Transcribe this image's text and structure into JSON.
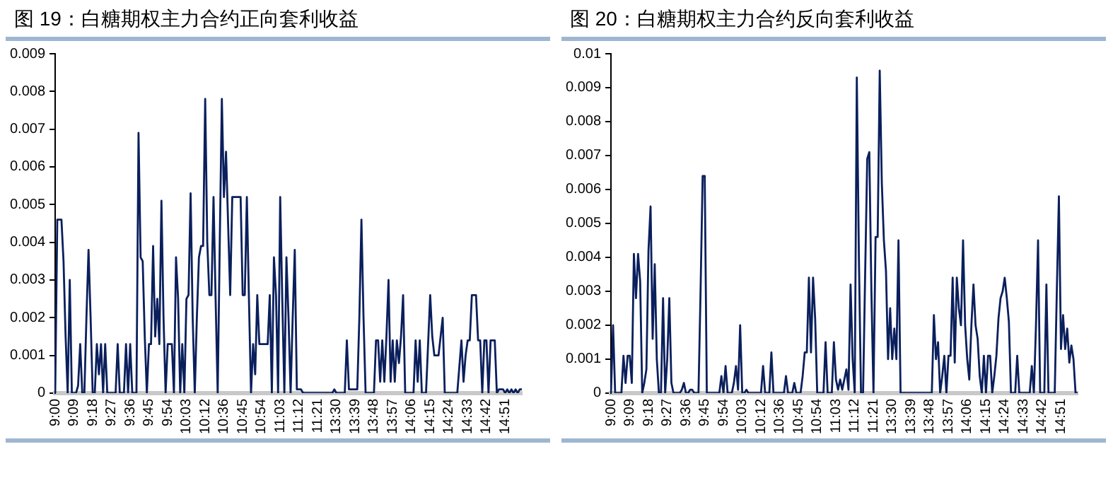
{
  "chart_data": [
    {
      "type": "line",
      "title": "图 19：白糖期权主力合约正向套利收益",
      "categories": [
        "9:00",
        null,
        null,
        null,
        null,
        null,
        null,
        null,
        null,
        "9:09",
        null,
        null,
        null,
        null,
        null,
        null,
        null,
        null,
        "9:18",
        null,
        null,
        null,
        null,
        null,
        null,
        null,
        null,
        "9:27",
        null,
        null,
        null,
        null,
        null,
        null,
        null,
        null,
        "9:36",
        null,
        null,
        null,
        null,
        null,
        null,
        null,
        null,
        "9:45",
        null,
        null,
        null,
        null,
        null,
        null,
        null,
        null,
        "9:54",
        null,
        null,
        null,
        null,
        null,
        null,
        null,
        null,
        "10:03",
        null,
        null,
        null,
        null,
        null,
        null,
        null,
        null,
        "10:12",
        null,
        null,
        null,
        null,
        null,
        null,
        null,
        null,
        "10:36",
        null,
        null,
        null,
        null,
        null,
        null,
        null,
        null,
        "10:45",
        null,
        null,
        null,
        null,
        null,
        null,
        null,
        null,
        "10:54",
        null,
        null,
        null,
        null,
        null,
        null,
        null,
        null,
        "11:03",
        null,
        null,
        null,
        null,
        null,
        null,
        null,
        null,
        "11:12",
        null,
        null,
        null,
        null,
        null,
        null,
        null,
        null,
        "11:21",
        null,
        null,
        null,
        null,
        null,
        null,
        null,
        null,
        "13:30",
        null,
        null,
        null,
        null,
        null,
        null,
        null,
        null,
        "13:39",
        null,
        null,
        null,
        null,
        null,
        null,
        null,
        null,
        "13:48",
        null,
        null,
        null,
        null,
        null,
        null,
        null,
        null,
        "13:57",
        null,
        null,
        null,
        null,
        null,
        null,
        null,
        null,
        "14:06",
        null,
        null,
        null,
        null,
        null,
        null,
        null,
        null,
        "14:15",
        null,
        null,
        null,
        null,
        null,
        null,
        null,
        null,
        "14:24",
        null,
        null,
        null,
        null,
        null,
        null,
        null,
        null,
        "14:33",
        null,
        null,
        null,
        null,
        null,
        null,
        null,
        null,
        "14:42",
        null,
        null,
        null,
        null,
        null,
        null,
        null,
        null,
        "14:51",
        null,
        null,
        null,
        null,
        null,
        null,
        null,
        null
      ],
      "series": [
        {
          "color": "#0a1f5c",
          "values": [
            0,
            0.0046,
            0.0046,
            0.0046,
            0.0035,
            0.0015,
            0,
            0.003,
            0,
            0,
            0,
            0.0002,
            0.0013,
            0,
            0,
            0.002,
            0.0038,
            0.002,
            0,
            0,
            0.0013,
            0.0005,
            0.0013,
            0,
            0.0013,
            0,
            0,
            0,
            0,
            0,
            0.0013,
            0,
            0,
            0,
            0.0013,
            0,
            0.0013,
            0,
            0,
            0,
            0.0069,
            0.0036,
            0.0035,
            0.0015,
            0,
            0.0013,
            0.0013,
            0.0039,
            0.0015,
            0.0025,
            0.0013,
            0.0051,
            0.002,
            0,
            0.0013,
            0.0013,
            0.0013,
            0,
            0.0036,
            0.0025,
            0,
            0.0013,
            0,
            0.0025,
            0.0026,
            0.0053,
            0.002,
            0,
            0.002,
            0.0036,
            0.0039,
            0.0039,
            0.0078,
            0.004,
            0.0026,
            0.0026,
            0.0052,
            0.0025,
            0,
            0.004,
            0.0078,
            0.0052,
            0.0064,
            0.0045,
            0.0026,
            0.0052,
            0.0052,
            0.0052,
            0.0052,
            0.0052,
            0.0026,
            0.0026,
            0.0052,
            0.0025,
            0,
            0.0013,
            0.0005,
            0.0026,
            0.0013,
            0.0013,
            0.0013,
            0.0013,
            0.0013,
            0.0026,
            0,
            0.0036,
            0.0026,
            0,
            0.0052,
            0.0025,
            0,
            0.0036,
            0.002,
            0,
            0.002,
            0.0038,
            0.0001,
            0.0001,
            0.0001,
            0,
            0,
            0,
            0,
            0,
            0,
            0,
            0,
            0,
            0,
            0,
            0,
            0,
            0,
            0,
            0.0001,
            0,
            0,
            0,
            0,
            0,
            0.0014,
            0.0001,
            0.0001,
            0.0001,
            0.0001,
            0.0001,
            0.002,
            0.0046,
            0.002,
            0,
            0,
            0,
            0,
            0,
            0.0014,
            0.0014,
            0.0003,
            0.0014,
            0.0003,
            0.0015,
            0.003,
            0.0003,
            0.0014,
            0.0003,
            0.0014,
            0.0008,
            0.0015,
            0.0026,
            0,
            0,
            0,
            0,
            0,
            0.0014,
            0.0003,
            0.0014,
            0,
            0,
            0,
            0.0013,
            0.0026,
            0.0015,
            0.001,
            0.001,
            0.001,
            0.0015,
            0.002,
            0,
            0,
            0,
            0,
            0,
            0,
            0,
            0.0007,
            0.0014,
            0.0003,
            0.001,
            0.0014,
            0.0014,
            0.0026,
            0.0026,
            0.0026,
            0.0014,
            0.0014,
            0,
            0.0014,
            0.0014,
            0,
            0.0014,
            0.0014,
            0.0014,
            0,
            0.0001,
            0.0001,
            0.0001,
            0,
            0.0001,
            0,
            0.0001,
            0,
            0.0001,
            0,
            0.0001,
            0.0001
          ]
        }
      ],
      "ylim": [
        0,
        0.009
      ],
      "yticks": [
        0,
        0.001,
        0.002,
        0.003,
        0.004,
        0.005,
        0.006,
        0.007,
        0.008,
        0.009
      ],
      "grid": false,
      "legend": false
    },
    {
      "type": "line",
      "title": "图 20：白糖期权主力合约反向套利收益",
      "categories": [
        "9:00",
        null,
        null,
        null,
        null,
        null,
        null,
        null,
        null,
        "9:09",
        null,
        null,
        null,
        null,
        null,
        null,
        null,
        null,
        "9:18",
        null,
        null,
        null,
        null,
        null,
        null,
        null,
        null,
        "9:27",
        null,
        null,
        null,
        null,
        null,
        null,
        null,
        null,
        "9:36",
        null,
        null,
        null,
        null,
        null,
        null,
        null,
        null,
        "9:45",
        null,
        null,
        null,
        null,
        null,
        null,
        null,
        null,
        "9:54",
        null,
        null,
        null,
        null,
        null,
        null,
        null,
        null,
        "10:03",
        null,
        null,
        null,
        null,
        null,
        null,
        null,
        null,
        "10:12",
        null,
        null,
        null,
        null,
        null,
        null,
        null,
        null,
        "10:36",
        null,
        null,
        null,
        null,
        null,
        null,
        null,
        null,
        "10:45",
        null,
        null,
        null,
        null,
        null,
        null,
        null,
        null,
        "10:54",
        null,
        null,
        null,
        null,
        null,
        null,
        null,
        null,
        "11:03",
        null,
        null,
        null,
        null,
        null,
        null,
        null,
        null,
        "11:12",
        null,
        null,
        null,
        null,
        null,
        null,
        null,
        null,
        "11:21",
        null,
        null,
        null,
        null,
        null,
        null,
        null,
        null,
        "13:30",
        null,
        null,
        null,
        null,
        null,
        null,
        null,
        null,
        "13:39",
        null,
        null,
        null,
        null,
        null,
        null,
        null,
        null,
        "13:48",
        null,
        null,
        null,
        null,
        null,
        null,
        null,
        null,
        "13:57",
        null,
        null,
        null,
        null,
        null,
        null,
        null,
        null,
        "14:06",
        null,
        null,
        null,
        null,
        null,
        null,
        null,
        null,
        "14:15",
        null,
        null,
        null,
        null,
        null,
        null,
        null,
        null,
        "14:24",
        null,
        null,
        null,
        null,
        null,
        null,
        null,
        null,
        "14:33",
        null,
        null,
        null,
        null,
        null,
        null,
        null,
        null,
        "14:42",
        null,
        null,
        null,
        null,
        null,
        null,
        null,
        null,
        "14:51",
        null,
        null,
        null,
        null,
        null,
        null,
        null,
        null
      ],
      "series": [
        {
          "color": "#0a1f5c",
          "values": [
            0,
            0.002,
            0,
            0,
            0,
            0,
            0.0011,
            0.0003,
            0.0011,
            0.0011,
            0.0003,
            0.0041,
            0.0028,
            0.0041,
            0.0033,
            0,
            0.0003,
            0.0007,
            0.0042,
            0.0055,
            0.0016,
            0.0038,
            0.001,
            0,
            0,
            0.0028,
            0,
            0.001,
            0.0028,
            0.0003,
            0,
            0,
            0,
            0,
            0.0001,
            0.0003,
            0,
            0,
            0.0001,
            0.0001,
            0,
            0,
            0,
            0.003,
            0.0064,
            0.0064,
            0,
            0,
            0,
            0,
            0,
            0,
            0,
            0.0005,
            0,
            0.0008,
            0,
            0,
            0,
            0.0003,
            0.0008,
            0.0001,
            0.002,
            0,
            0,
            0.0001,
            0,
            0,
            0,
            0,
            0,
            0,
            0,
            0.0008,
            0,
            0,
            0,
            0.0012,
            0,
            0,
            0,
            0,
            0,
            0,
            0.0005,
            0,
            0,
            0,
            0.0003,
            0,
            0,
            0,
            0.0005,
            0.0012,
            0.0012,
            0.0034,
            0.0012,
            0.0034,
            0.0022,
            0,
            0,
            0,
            0,
            0.0015,
            0,
            0,
            0,
            0.0015,
            0.0004,
            0.0001,
            0.0004,
            0.0001,
            0.0004,
            0.0007,
            0.0001,
            0.0032,
            0.001,
            0,
            0.0093,
            0.004,
            0,
            0,
            0.0035,
            0.0069,
            0.0071,
            0.003,
            0,
            0.0046,
            0.0046,
            0.0095,
            0.0062,
            0.0045,
            0.0036,
            0.001,
            0.0025,
            0.001,
            0.0019,
            0.001,
            0.0045,
            0,
            0,
            0,
            0,
            0,
            0,
            0,
            0,
            0,
            0,
            0,
            0,
            0,
            0,
            0,
            0,
            0.0023,
            0.001,
            0.0015,
            0,
            0.0005,
            0.0011,
            0,
            0.0011,
            0.0011,
            0.0034,
            0.0009,
            0.0034,
            0.0025,
            0.002,
            0.0045,
            0.002,
            0.001,
            0.0004,
            0.002,
            0.0032,
            0.002,
            0.0016,
            0.0005,
            0,
            0.0011,
            0,
            0.0011,
            0.0011,
            0,
            0.0005,
            0.0011,
            0.0022,
            0.0028,
            0.003,
            0.0034,
            0.0028,
            0.0021,
            0,
            0,
            0,
            0.0011,
            0,
            0,
            0,
            0,
            0,
            0,
            0.0008,
            0,
            0.002,
            0.0045,
            0,
            0,
            0,
            0.0032,
            0,
            0,
            0,
            0,
            0.003,
            0.0058,
            0.0013,
            0.0023,
            0.0013,
            0.0019,
            0.0009,
            0.0014,
            0.001,
            0,
            0
          ]
        }
      ],
      "ylim": [
        0,
        0.01
      ],
      "yticks": [
        0,
        0.001,
        0.002,
        0.003,
        0.004,
        0.005,
        0.006,
        0.007,
        0.008,
        0.009,
        0.01
      ],
      "grid": false,
      "legend": false
    }
  ]
}
